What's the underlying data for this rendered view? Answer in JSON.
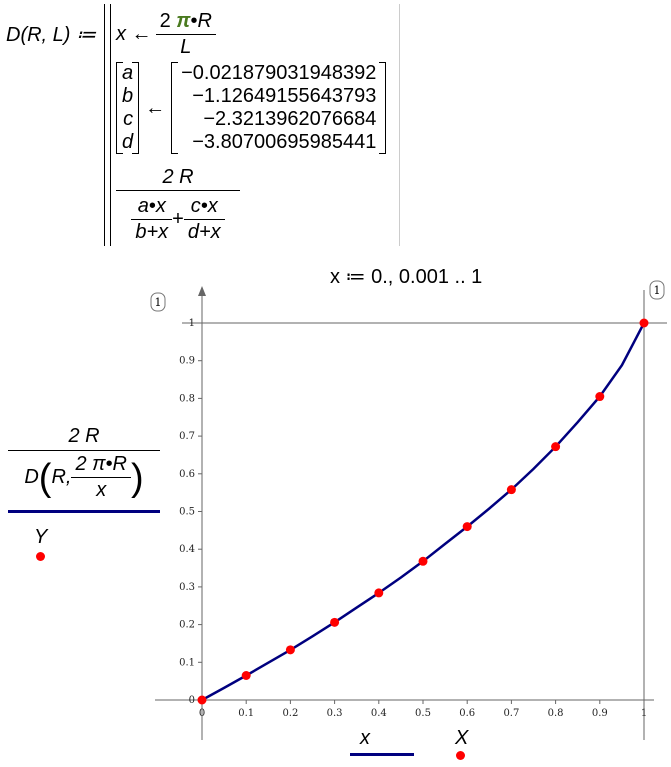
{
  "definition": {
    "lhs": "D(R, L) ≔",
    "x_assign": "x ←",
    "x_num_coef": "2",
    "pi": "π",
    "dot": "•",
    "R": "R",
    "L": "L",
    "vec_vars": [
      "a",
      "b",
      "c",
      "d"
    ],
    "vec_arrow": "←",
    "vec_vals": [
      "−0.021879031948392",
      "−1.12649155643793",
      "−2.3213962076684",
      "−3.80700695985441"
    ],
    "ret_num": "2 R",
    "ret_den1_num": "a•x",
    "ret_den1_den": "b+x",
    "plus": "+",
    "ret_den2_num": "c•x",
    "ret_den2_den": "d+x"
  },
  "range_def": "x ≔ 0., 0.001 .. 1",
  "y_axis_label": {
    "num": "2 R",
    "den_prefix": "D",
    "den_arg1": "R,",
    "den_inner_num": "2 π•R",
    "den_inner_den": "x",
    "legend2": "Y"
  },
  "x_axis_label": {
    "legend1": "x",
    "legend2": "X"
  },
  "badges": {
    "y_top": "1",
    "x_right": "1"
  },
  "colors": {
    "curve": "#00007f",
    "points": "#ff0000"
  },
  "chart_data": {
    "type": "line",
    "xlim": [
      0,
      1
    ],
    "ylim": [
      0,
      1
    ],
    "xticks": [
      "0",
      "0.1",
      "0.2",
      "0.3",
      "0.4",
      "0.5",
      "0.6",
      "0.7",
      "0.8",
      "0.9",
      "1"
    ],
    "yticks": [
      "0",
      "0.1",
      "0.2",
      "0.3",
      "0.4",
      "0.5",
      "0.6",
      "0.7",
      "0.8",
      "0.9",
      "1"
    ],
    "series": [
      {
        "kind": "line",
        "x": [
          0,
          0.05,
          0.1,
          0.15,
          0.2,
          0.25,
          0.3,
          0.35,
          0.4,
          0.45,
          0.5,
          0.55,
          0.6,
          0.65,
          0.7,
          0.75,
          0.8,
          0.85,
          0.9,
          0.95,
          1
        ],
        "y": [
          0,
          0.032,
          0.065,
          0.099,
          0.133,
          0.169,
          0.206,
          0.245,
          0.284,
          0.325,
          0.368,
          0.414,
          0.46,
          0.508,
          0.558,
          0.613,
          0.672,
          0.737,
          0.805,
          0.888,
          1.0
        ]
      },
      {
        "kind": "scatter",
        "x": [
          0,
          0.1,
          0.2,
          0.3,
          0.4,
          0.5,
          0.6,
          0.7,
          0.8,
          0.9,
          1
        ],
        "y": [
          0,
          0.065,
          0.133,
          0.206,
          0.284,
          0.368,
          0.46,
          0.558,
          0.672,
          0.805,
          1.0
        ]
      }
    ],
    "grid": false
  }
}
